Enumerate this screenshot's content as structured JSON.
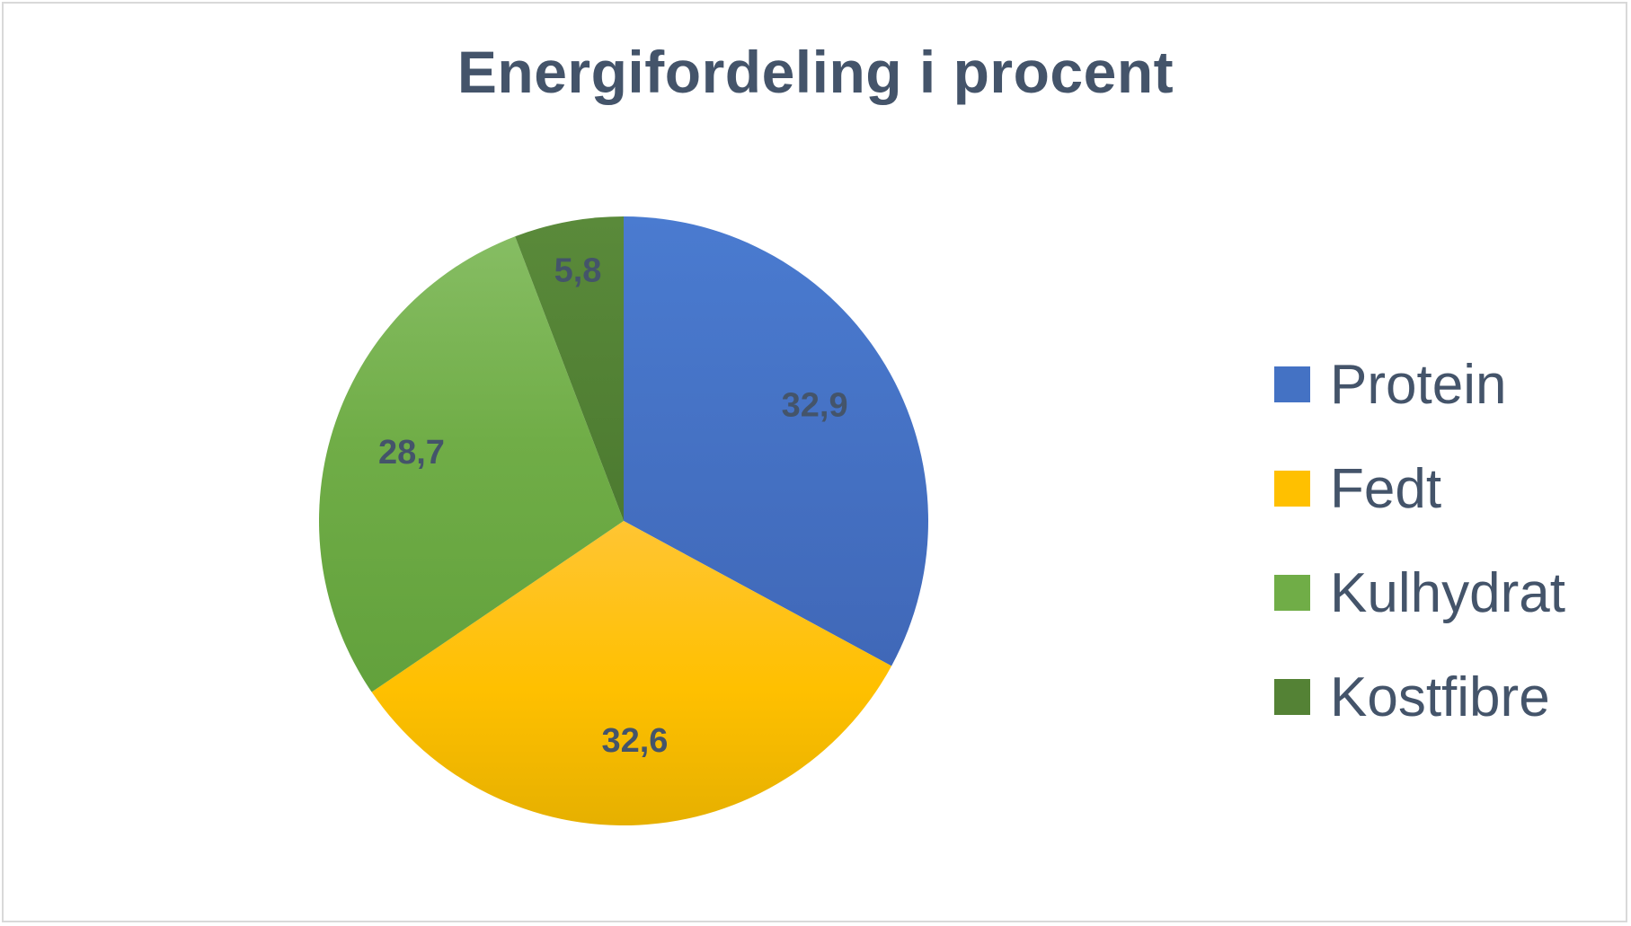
{
  "chart_data": {
    "type": "pie",
    "title": "Energifordeling i procent",
    "categories": [
      "Protein",
      "Fedt",
      "Kulhydrat",
      "Kostfibre"
    ],
    "values": [
      32.9,
      32.6,
      28.7,
      5.8
    ],
    "data_labels": [
      "32,9",
      "32,6",
      "28,7",
      "5,8"
    ],
    "colors": [
      "#4472c4",
      "#ffc000",
      "#70ad47",
      "#548235"
    ],
    "legend_placement": "right",
    "start_angle": "12 o'clock, clockwise"
  }
}
